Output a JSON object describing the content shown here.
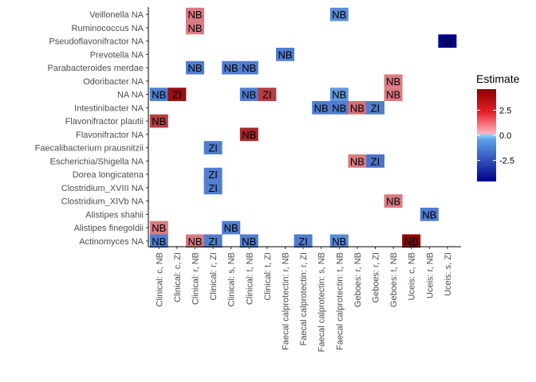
{
  "chart_data": {
    "type": "heatmap",
    "y_categories": [
      "Veillonella NA",
      "Ruminococcus NA",
      "Pseudoflavonifractor NA",
      "Prevotella NA",
      "Parabacteroides merdae",
      "Odoribacter NA",
      "NA NA",
      "Intestinibacter NA",
      "Flavonifractor plautii",
      "Flavonifractor NA",
      "Faecalibacterium prausnitzii",
      "Escherichia/Shigella NA",
      "Dorea longicatena",
      "Clostridium_XVIII NA",
      "Clostridium_XIVb NA",
      "Alistipes shahii",
      "Alistipes finegoldii",
      "Actinomyces NA"
    ],
    "x_categories": [
      "Clinical: c, NB",
      "Clinical: c, ZI",
      "Clinical: r, NB",
      "Clinical: r, ZI",
      "Clinical: s, NB",
      "Clinical: t, NB",
      "Clinical: t, ZI",
      "Faecal calprotectin: r, NB",
      "Faecal calprotectin: r, ZI",
      "Faecal calprotectin: s, NB",
      "Faecal calprotectin: t, NB",
      "Geboes: r, NB",
      "Geboes: r, ZI",
      "Geboes: t, NB",
      "Uceis: c, NB",
      "Uceis: r, NB",
      "Uceis: s, ZI"
    ],
    "cells": [
      {
        "y": "Veillonella NA",
        "x": "Clinical: r, NB",
        "value": 1.5,
        "label": "NB"
      },
      {
        "y": "Veillonella NA",
        "x": "Faecal calprotectin: t, NB",
        "value": -1.5,
        "label": "NB"
      },
      {
        "y": "Ruminococcus NA",
        "x": "Clinical: r, NB",
        "value": 1.5,
        "label": "NB"
      },
      {
        "y": "Pseudoflavonifractor NA",
        "x": "Uceis: s, ZI",
        "value": -4.5,
        "label": "ZI"
      },
      {
        "y": "Prevotella NA",
        "x": "Faecal calprotectin: r, NB",
        "value": -1.8,
        "label": "NB"
      },
      {
        "y": "Parabacteroides merdae",
        "x": "Clinical: r, NB",
        "value": -1.8,
        "label": "NB"
      },
      {
        "y": "Parabacteroides merdae",
        "x": "Clinical: s, NB",
        "value": -1.8,
        "label": "NB"
      },
      {
        "y": "Parabacteroides merdae",
        "x": "Clinical: t, NB",
        "value": -1.8,
        "label": "NB"
      },
      {
        "y": "Odoribacter NA",
        "x": "Geboes: t, NB",
        "value": 1.5,
        "label": "NB"
      },
      {
        "y": "NA NA",
        "x": "Clinical: c, NB",
        "value": -1.8,
        "label": "NB"
      },
      {
        "y": "NA NA",
        "x": "Clinical: c, ZI",
        "value": 4.2,
        "label": "ZI"
      },
      {
        "y": "NA NA",
        "x": "Clinical: t, NB",
        "value": -1.8,
        "label": "NB"
      },
      {
        "y": "NA NA",
        "x": "Clinical: t, ZI",
        "value": 3.0,
        "label": "ZI"
      },
      {
        "y": "NA NA",
        "x": "Faecal calprotectin: t, NB",
        "value": -1.2,
        "label": "NB"
      },
      {
        "y": "NA NA",
        "x": "Geboes: t, NB",
        "value": 1.5,
        "label": "NB"
      },
      {
        "y": "Intestinibacter NA",
        "x": "Faecal calprotectin: s, NB",
        "value": -1.8,
        "label": "NB"
      },
      {
        "y": "Intestinibacter NA",
        "x": "Faecal calprotectin: t, NB",
        "value": -1.8,
        "label": "NB"
      },
      {
        "y": "Intestinibacter NA",
        "x": "Geboes: r, NB",
        "value": 1.8,
        "label": "NB"
      },
      {
        "y": "Intestinibacter NA",
        "x": "Geboes: r, ZI",
        "value": -1.8,
        "label": "ZI"
      },
      {
        "y": "Flavonifractor plautii",
        "x": "Clinical: c, NB",
        "value": 3.0,
        "label": "NB"
      },
      {
        "y": "Flavonifractor NA",
        "x": "Clinical: t, NB",
        "value": 3.6,
        "label": "NB"
      },
      {
        "y": "Faecalibacterium prausnitzii",
        "x": "Clinical: r, ZI",
        "value": -1.8,
        "label": "ZI"
      },
      {
        "y": "Escherichia/Shigella NA",
        "x": "Geboes: r, NB",
        "value": 1.5,
        "label": "NB"
      },
      {
        "y": "Escherichia/Shigella NA",
        "x": "Geboes: r, ZI",
        "value": -2.0,
        "label": "ZI"
      },
      {
        "y": "Dorea longicatena",
        "x": "Clinical: r, ZI",
        "value": -1.8,
        "label": "ZI"
      },
      {
        "y": "Clostridium_XVIII NA",
        "x": "Clinical: r, ZI",
        "value": -1.8,
        "label": "ZI"
      },
      {
        "y": "Clostridium_XIVb NA",
        "x": "Geboes: t, NB",
        "value": 1.5,
        "label": "NB"
      },
      {
        "y": "Alistipes shahii",
        "x": "Uceis: r, NB",
        "value": -1.8,
        "label": "NB"
      },
      {
        "y": "Alistipes finegoldii",
        "x": "Clinical: c, NB",
        "value": 1.5,
        "label": "NB"
      },
      {
        "y": "Alistipes finegoldii",
        "x": "Clinical: s, NB",
        "value": -1.8,
        "label": "NB"
      },
      {
        "y": "Actinomyces NA",
        "x": "Clinical: c, NB",
        "value": -1.8,
        "label": "NB"
      },
      {
        "y": "Actinomyces NA",
        "x": "Clinical: r, NB",
        "value": 1.5,
        "label": "NB"
      },
      {
        "y": "Actinomyces NA",
        "x": "Clinical: r, ZI",
        "value": -1.8,
        "label": "ZI"
      },
      {
        "y": "Actinomyces NA",
        "x": "Clinical: t, NB",
        "value": -1.8,
        "label": "NB"
      },
      {
        "y": "Actinomyces NA",
        "x": "Faecal calprotectin: r, ZI",
        "value": -1.8,
        "label": "ZI"
      },
      {
        "y": "Actinomyces NA",
        "x": "Faecal calprotectin: t, NB",
        "value": -1.5,
        "label": "NB"
      },
      {
        "y": "Actinomyces NA",
        "x": "Uceis: c, NB",
        "value": 4.5,
        "label": "NB"
      }
    ],
    "legend": {
      "title": "Estimate",
      "ticks": [
        "2.5",
        "0.0",
        "-2.5"
      ],
      "tick_values": [
        2.5,
        0.0,
        -2.5
      ],
      "range": [
        -4.6,
        4.6
      ],
      "colors": {
        "low": "#00008B",
        "mid_low": "#87CEFA",
        "mid_high": "#FFB6C1",
        "high": "#8B0000"
      }
    },
    "grid": false,
    "legend_placement": "right"
  }
}
